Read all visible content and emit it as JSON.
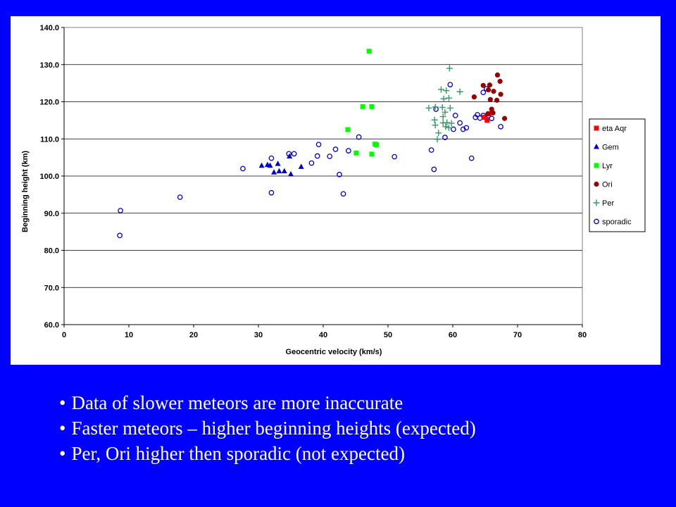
{
  "bullets": [
    "Data of slower meteors are more inaccurate",
    "Faster meteors – higher beginning heights (expected)",
    "Per, Ori higher then sporadic (not expected)"
  ],
  "chart_data": {
    "type": "scatter",
    "xlabel": "Geocentric velocity (km/s)",
    "ylabel": "Beginning height (km)",
    "xlim": [
      0,
      80
    ],
    "ylim": [
      60,
      140
    ],
    "x_ticks": [
      "0",
      "10",
      "20",
      "30",
      "40",
      "50",
      "60",
      "70",
      "80"
    ],
    "y_ticks": [
      "60.0",
      "70.0",
      "80.0",
      "90.0",
      "100.0",
      "110.0",
      "120.0",
      "130.0",
      "140.0"
    ],
    "grid": "horizontal",
    "legend_position": "right",
    "series": [
      {
        "name": "eta Aqr",
        "marker": "square",
        "color": "#ff0000",
        "points": [
          [
            65.3,
            115.0
          ],
          [
            64.8,
            115.8
          ],
          [
            65.6,
            116.8
          ]
        ]
      },
      {
        "name": "Gem",
        "marker": "triangle",
        "color": "#0000cc",
        "points": [
          [
            30.5,
            102.8
          ],
          [
            31.4,
            103.0
          ],
          [
            31.8,
            102.8
          ],
          [
            32.4,
            101.0
          ],
          [
            33.0,
            103.3
          ],
          [
            33.2,
            101.3
          ],
          [
            34.0,
            101.3
          ],
          [
            34.8,
            105.3
          ],
          [
            35.0,
            100.5
          ],
          [
            36.6,
            102.5
          ]
        ]
      },
      {
        "name": "Lyr",
        "marker": "square",
        "color": "#00ff00",
        "points": [
          [
            47.1,
            133.6
          ],
          [
            46.1,
            118.7
          ],
          [
            47.5,
            118.7
          ],
          [
            43.8,
            112.5
          ],
          [
            48.0,
            108.6
          ],
          [
            48.2,
            108.4
          ],
          [
            45.1,
            106.2
          ],
          [
            47.5,
            105.9
          ]
        ]
      },
      {
        "name": "Ori",
        "marker": "circle",
        "color": "#990000",
        "points": [
          [
            66.9,
            127.2
          ],
          [
            67.3,
            125.5
          ],
          [
            64.7,
            124.4
          ],
          [
            65.7,
            124.5
          ],
          [
            65.5,
            123.2
          ],
          [
            66.3,
            122.8
          ],
          [
            67.4,
            122.0
          ],
          [
            63.3,
            121.3
          ],
          [
            65.8,
            120.6
          ],
          [
            66.8,
            120.4
          ],
          [
            66.0,
            118.0
          ],
          [
            66.2,
            117.0
          ],
          [
            65.4,
            116.7
          ],
          [
            68.0,
            115.5
          ]
        ]
      },
      {
        "name": "Per",
        "marker": "plus",
        "color": "#339966",
        "points": [
          [
            59.5,
            129.0
          ],
          [
            58.2,
            123.3
          ],
          [
            59.0,
            123.0
          ],
          [
            61.1,
            122.7
          ],
          [
            58.6,
            120.8
          ],
          [
            59.4,
            121.0
          ],
          [
            56.3,
            118.3
          ],
          [
            57.3,
            118.6
          ],
          [
            58.4,
            118.5
          ],
          [
            59.6,
            118.3
          ],
          [
            58.8,
            117.2
          ],
          [
            58.5,
            116.0
          ],
          [
            57.2,
            115.1
          ],
          [
            58.5,
            114.3
          ],
          [
            59.1,
            114.4
          ],
          [
            59.8,
            114.2
          ],
          [
            57.3,
            113.7
          ],
          [
            58.9,
            113.3
          ],
          [
            59.4,
            113.0
          ],
          [
            57.8,
            111.6
          ],
          [
            57.6,
            109.9
          ]
        ]
      },
      {
        "name": "sporadic",
        "marker": "open-circle",
        "color": "#0000cc",
        "points": [
          [
            8.7,
            90.7
          ],
          [
            8.6,
            84.0
          ],
          [
            17.9,
            94.3
          ],
          [
            27.6,
            102.0
          ],
          [
            32.0,
            104.8
          ],
          [
            32.0,
            95.5
          ],
          [
            34.7,
            106.0
          ],
          [
            35.5,
            106.0
          ],
          [
            38.2,
            103.5
          ],
          [
            39.1,
            105.4
          ],
          [
            39.3,
            108.5
          ],
          [
            41.0,
            105.3
          ],
          [
            41.9,
            107.2
          ],
          [
            42.5,
            100.4
          ],
          [
            43.1,
            95.2
          ],
          [
            43.9,
            106.8
          ],
          [
            45.5,
            110.5
          ],
          [
            51.0,
            105.2
          ],
          [
            56.7,
            107.0
          ],
          [
            57.1,
            101.8
          ],
          [
            57.4,
            118.0
          ],
          [
            58.8,
            110.4
          ],
          [
            59.6,
            124.6
          ],
          [
            60.1,
            112.6
          ],
          [
            60.4,
            116.3
          ],
          [
            61.1,
            114.3
          ],
          [
            61.6,
            112.6
          ],
          [
            62.1,
            113.0
          ],
          [
            62.9,
            104.8
          ],
          [
            63.5,
            115.8
          ],
          [
            63.8,
            116.5
          ],
          [
            64.2,
            115.6
          ],
          [
            64.7,
            116.3
          ],
          [
            64.7,
            122.5
          ],
          [
            65.2,
            123.5
          ],
          [
            65.5,
            116.3
          ],
          [
            66.0,
            115.5
          ],
          [
            67.4,
            113.3
          ]
        ]
      }
    ]
  }
}
